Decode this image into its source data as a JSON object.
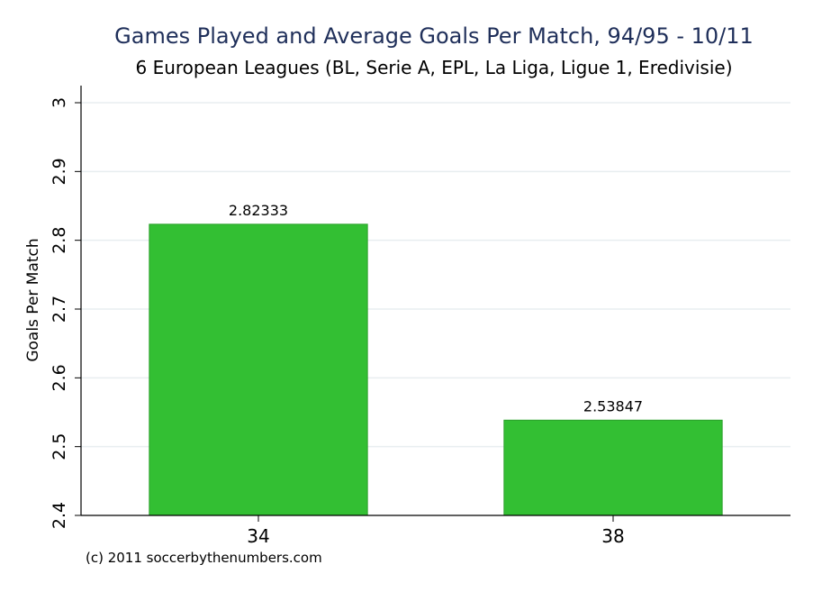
{
  "chart_data": {
    "type": "bar",
    "title": "Games Played and Average Goals Per Match, 94/95 - 10/11",
    "subtitle": "6 European Leagues (BL, Serie A, EPL, La Liga, Ligue 1, Eredivisie)",
    "ylabel": "Goals Per Match",
    "xlabel": "",
    "categories": [
      "34",
      "38"
    ],
    "values": [
      2.82333,
      2.53847
    ],
    "value_labels": [
      "2.82333",
      "2.53847"
    ],
    "ylim": [
      2.4,
      3.0
    ],
    "yticks": [
      2.4,
      2.5,
      2.6,
      2.7,
      2.8,
      2.9,
      3.0
    ],
    "ytick_labels": [
      "2.4",
      "2.5",
      "2.6",
      "2.7",
      "2.8",
      "2.9",
      "3"
    ],
    "grid": true,
    "bar_color": "#33bf33",
    "bar_edge_color": "#2aa02a",
    "title_color": "#1f2f5a",
    "grid_color": "#e8eef0"
  },
  "footer": {
    "credit": "(c) 2011 soccerbythenumbers.com"
  }
}
